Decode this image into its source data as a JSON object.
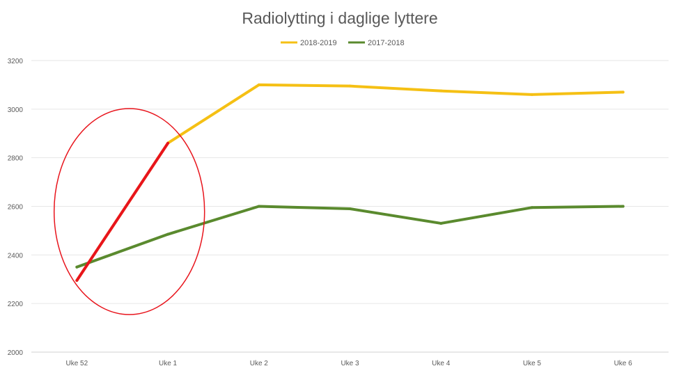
{
  "chart_data": {
    "type": "line",
    "title": "Radiolytting i daglige lyttere",
    "xlabel": "",
    "ylabel": "",
    "categories": [
      "Uke 52",
      "Uke 1",
      "Uke 2",
      "Uke 3",
      "Uke 4",
      "Uke 5",
      "Uke 6"
    ],
    "ylim": [
      2000,
      3200
    ],
    "yticks": [
      2000,
      2200,
      2400,
      2600,
      2800,
      3000,
      3200
    ],
    "grid": true,
    "legend_position": "top-center",
    "series": [
      {
        "name": "2018-2019",
        "color": "#f5c014",
        "values": [
          2295,
          2860,
          3100,
          3095,
          3075,
          3060,
          3070
        ]
      },
      {
        "name": "2017-2018",
        "color": "#5a8a2e",
        "values": [
          2350,
          2485,
          2600,
          2590,
          2530,
          2595,
          2600
        ]
      }
    ],
    "annotations": {
      "highlight_segment": {
        "series": "2018-2019",
        "from": "Uke 52",
        "to": "Uke 1",
        "color": "#e8141c"
      },
      "circle": {
        "color": "#e8141c",
        "around": [
          "Uke 52",
          "Uke 1"
        ]
      }
    }
  }
}
